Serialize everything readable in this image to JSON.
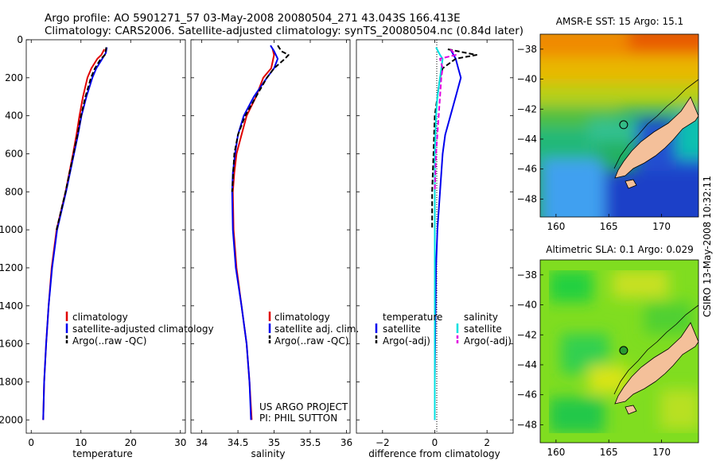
{
  "header": {
    "line1": "Argo profile: AO 5901271_57 03-May-2008 20080504_271 43.043S 166.413E",
    "line2": "Climatology: CARS2006. Satellite-adjusted climatology: synTS_20080504.nc (0.84d later)"
  },
  "side_stamp": "CSIRO 13-May-2008 10:32:11",
  "colors": {
    "red": "#e00000",
    "blue": "#0000ee",
    "black": "#000000",
    "cyan": "#00e0e0",
    "magenta": "#e000e0",
    "land": "#f4c09a"
  },
  "chart_data": [
    {
      "type": "line",
      "xlabel": "temperature",
      "xlim": [
        -1,
        31
      ],
      "ylim": [
        2070,
        0
      ],
      "x_ticks": [
        0,
        10,
        20,
        30
      ],
      "y_ticks": [
        0,
        200,
        400,
        600,
        800,
        1000,
        1200,
        1400,
        1600,
        1800,
        2000
      ],
      "legend": {
        "entries": [
          "climatology",
          "satellite-adjusted climatology",
          "Argo(..raw -QC)"
        ]
      },
      "series": [
        {
          "name": "climatology",
          "color": "red",
          "dash": "solid",
          "depth": [
            50,
            80,
            100,
            150,
            200,
            300,
            400,
            500,
            600,
            800,
            1000,
            1200,
            1400,
            1600,
            1800,
            2000
          ],
          "values": [
            14.7,
            14.1,
            13.3,
            12.1,
            11.3,
            10.4,
            9.7,
            9.1,
            8.4,
            6.9,
            5.1,
            4.1,
            3.5,
            3.0,
            2.6,
            2.4
          ]
        },
        {
          "name": "satellite-adjusted climatology",
          "color": "blue",
          "dash": "solid",
          "depth": [
            40,
            70,
            100,
            150,
            200,
            300,
            400,
            500,
            600,
            800,
            1000,
            1200,
            1400,
            1600,
            1800,
            2000
          ],
          "values": [
            15.2,
            15.0,
            14.3,
            13.1,
            12.3,
            11.1,
            10.1,
            9.4,
            8.6,
            7.0,
            5.2,
            4.2,
            3.5,
            3.0,
            2.6,
            2.4
          ]
        },
        {
          "name": "Argo(..raw -QC)",
          "color": "black",
          "dash": "dash",
          "depth": [
            40,
            80,
            100,
            150,
            200,
            300,
            400,
            500,
            600,
            800,
            1000
          ],
          "values": [
            15.1,
            14.8,
            14.0,
            12.8,
            12.0,
            10.9,
            10.0,
            9.3,
            8.5,
            6.9,
            5.1
          ]
        }
      ]
    },
    {
      "type": "line",
      "xlabel": "salinity",
      "xlim": [
        33.85,
        36.05
      ],
      "ylim": [
        2070,
        0
      ],
      "x_ticks": [
        34,
        34.5,
        35,
        35.5,
        36
      ],
      "legend": {
        "entries": [
          "climatology",
          "satellite adj. clim.",
          "Argo(..raw -QC)"
        ]
      },
      "annotation": [
        "US ARGO PROJECT",
        "PI: PHIL SUTTON"
      ],
      "series": [
        {
          "name": "climatology",
          "color": "red",
          "dash": "solid",
          "depth": [
            50,
            80,
            150,
            200,
            300,
            400,
            500,
            600,
            700,
            800,
            1000,
            1200,
            1400,
            1600,
            1800,
            2000
          ],
          "values": [
            34.98,
            35.0,
            34.96,
            34.85,
            34.75,
            34.62,
            34.55,
            34.48,
            34.45,
            34.43,
            34.44,
            34.48,
            34.55,
            34.62,
            34.66,
            34.69
          ]
        },
        {
          "name": "satellite adj. clim.",
          "color": "blue",
          "dash": "solid",
          "depth": [
            30,
            60,
            100,
            150,
            200,
            300,
            400,
            500,
            600,
            700,
            800,
            1000,
            1200,
            1400,
            1600,
            1800,
            2000
          ],
          "values": [
            34.95,
            35.0,
            35.05,
            35.0,
            34.9,
            34.72,
            34.58,
            34.5,
            34.46,
            34.43,
            34.42,
            34.43,
            34.47,
            34.55,
            34.62,
            34.66,
            34.68
          ]
        },
        {
          "name": "Argo(..raw -QC)",
          "color": "black",
          "dash": "dash",
          "depth": [
            30,
            60,
            80,
            100,
            150,
            200,
            300,
            400,
            500,
            600,
            800
          ],
          "values": [
            35.05,
            35.1,
            35.2,
            35.15,
            35.0,
            34.9,
            34.75,
            34.6,
            34.5,
            34.45,
            34.42
          ]
        }
      ]
    },
    {
      "type": "line",
      "xlabel": "difference from climatology",
      "xlim": [
        -3,
        3
      ],
      "ylim": [
        2070,
        0
      ],
      "x_ticks": [
        -2,
        0,
        2
      ],
      "legend": {
        "temperature": {
          "title": "temperature",
          "entries": [
            "satellite",
            "Argo(-adj)"
          ]
        },
        "salinity": {
          "title": "salinity",
          "entries": [
            "satellite",
            "Argo(-adj)"
          ]
        }
      },
      "series": [
        {
          "name": "temperature satellite",
          "color": "blue",
          "dash": "solid",
          "depth": [
            50,
            100,
            150,
            200,
            300,
            400,
            500,
            600,
            800,
            1000,
            1200,
            1500,
            1800,
            2000
          ],
          "values": [
            0.6,
            0.8,
            0.9,
            1.0,
            0.8,
            0.6,
            0.4,
            0.3,
            0.2,
            0.1,
            0.05,
            0.02,
            0.0,
            0.0
          ]
        },
        {
          "name": "temperature Argo(-adj)",
          "color": "black",
          "dash": "dash",
          "depth": [
            50,
            80,
            100,
            150,
            200,
            300,
            400,
            600,
            800,
            1000
          ],
          "values": [
            0.5,
            1.6,
            0.8,
            0.3,
            0.2,
            0.1,
            0.0,
            -0.05,
            -0.1,
            -0.1
          ]
        },
        {
          "name": "salinity satellite",
          "color": "cyan",
          "dash": "solid",
          "depth": [
            40,
            80,
            100,
            200,
            300,
            400,
            600,
            800,
            1000,
            1500,
            2000
          ],
          "values": [
            0.05,
            0.2,
            0.3,
            0.2,
            0.1,
            0.05,
            0.0,
            0.0,
            0.0,
            0.0,
            0.0
          ]
        },
        {
          "name": "salinity Argo(-adj)",
          "color": "magenta",
          "dash": "dash",
          "depth": [
            50,
            80,
            100,
            150,
            200,
            300,
            400,
            600,
            800
          ],
          "values": [
            0.6,
            0.8,
            0.2,
            0.3,
            0.25,
            0.2,
            0.15,
            0.05,
            0.0
          ]
        }
      ]
    },
    {
      "type": "heatmap",
      "title": "AMSR-E SST: 15 Argo: 15.1",
      "xlim": [
        158.5,
        173.5
      ],
      "ylim": [
        -49.2,
        -37
      ],
      "x_ticks": [
        160,
        165,
        170
      ],
      "y_ticks": [
        -38,
        -40,
        -42,
        -44,
        -46,
        -48
      ],
      "float_position": {
        "lon": 166.41,
        "lat": -43.04
      }
    },
    {
      "type": "heatmap",
      "title": "Altimetric SLA: 0.1 Argo: 0.029",
      "xlim": [
        158.5,
        173.5
      ],
      "ylim": [
        -49.2,
        -37
      ],
      "x_ticks": [
        160,
        165,
        170
      ],
      "y_ticks": [
        -38,
        -40,
        -42,
        -44,
        -46,
        -48
      ],
      "float_position": {
        "lon": 166.41,
        "lat": -43.04
      }
    }
  ]
}
